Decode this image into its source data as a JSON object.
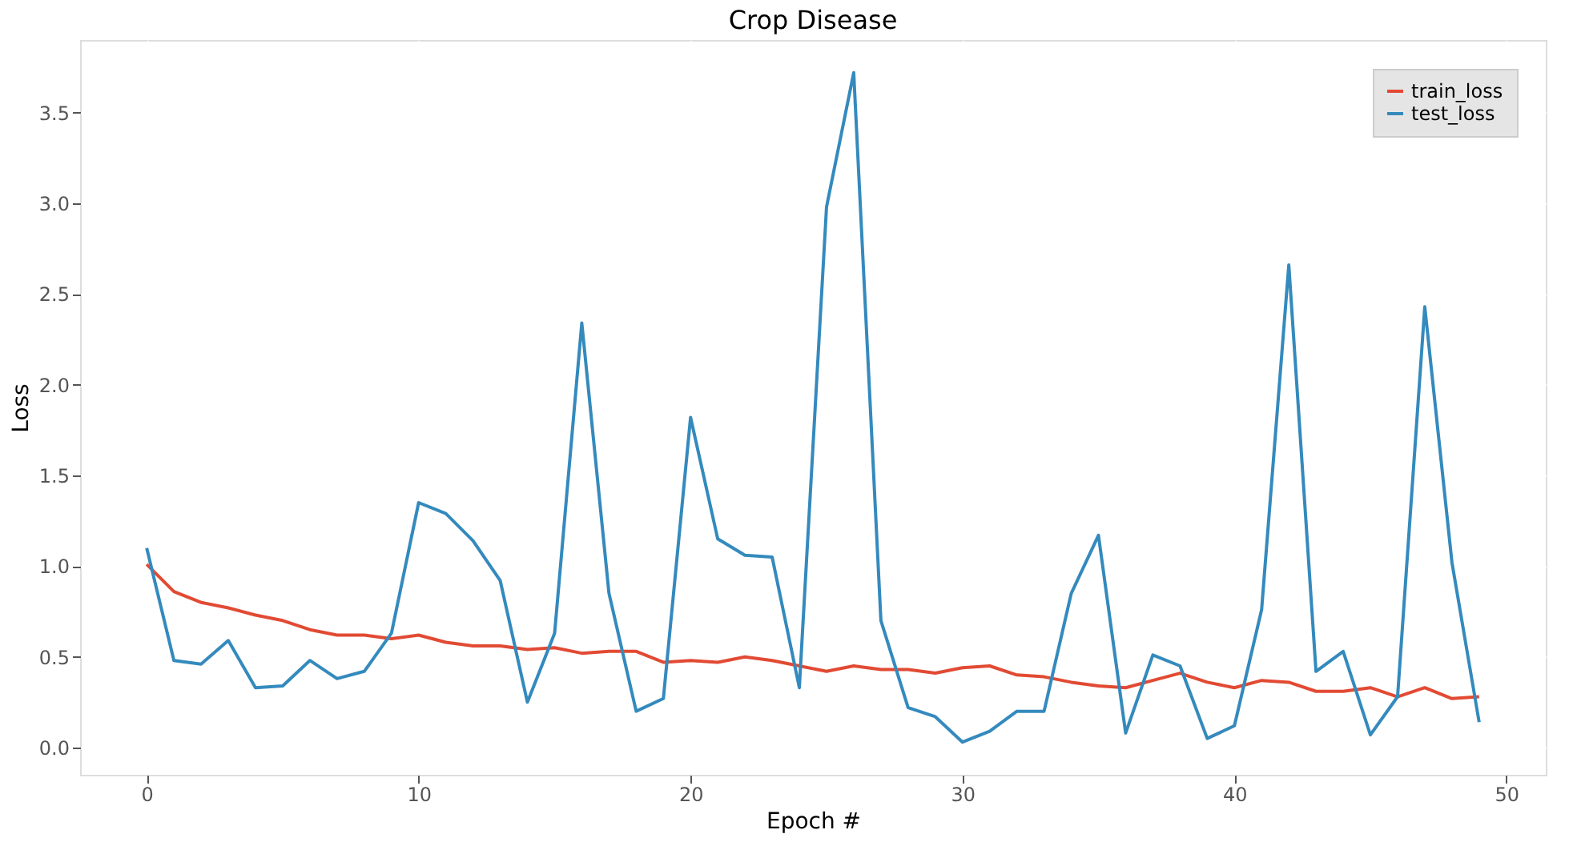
{
  "chart_data": {
    "type": "line",
    "title": "Crop Disease",
    "xlabel": "Epoch #",
    "ylabel": "Loss",
    "x": [
      0,
      1,
      2,
      3,
      4,
      5,
      6,
      7,
      8,
      9,
      10,
      11,
      12,
      13,
      14,
      15,
      16,
      17,
      18,
      19,
      20,
      21,
      22,
      23,
      24,
      25,
      26,
      27,
      28,
      29,
      30,
      31,
      32,
      33,
      34,
      35,
      36,
      37,
      38,
      39,
      40,
      41,
      42,
      43,
      44,
      45,
      46,
      47,
      48,
      49
    ],
    "series": [
      {
        "name": "train_loss",
        "color": "#e24a33",
        "values": [
          1.01,
          0.86,
          0.8,
          0.77,
          0.73,
          0.7,
          0.65,
          0.62,
          0.62,
          0.6,
          0.62,
          0.58,
          0.56,
          0.56,
          0.54,
          0.55,
          0.52,
          0.53,
          0.53,
          0.47,
          0.48,
          0.47,
          0.5,
          0.48,
          0.45,
          0.42,
          0.45,
          0.43,
          0.43,
          0.41,
          0.44,
          0.45,
          0.4,
          0.39,
          0.36,
          0.34,
          0.33,
          0.37,
          0.41,
          0.36,
          0.33,
          0.37,
          0.36,
          0.31,
          0.31,
          0.33,
          0.28,
          0.33,
          0.27,
          0.28
        ]
      },
      {
        "name": "test_loss",
        "color": "#348abd",
        "values": [
          1.1,
          0.48,
          0.46,
          0.59,
          0.33,
          0.34,
          0.48,
          0.38,
          0.42,
          0.63,
          1.35,
          1.29,
          1.14,
          0.92,
          0.25,
          0.63,
          2.34,
          0.85,
          0.2,
          0.27,
          1.82,
          1.15,
          1.06,
          1.05,
          0.33,
          2.98,
          3.72,
          0.7,
          0.22,
          0.17,
          0.03,
          0.09,
          0.2,
          0.2,
          0.85,
          1.17,
          0.08,
          0.51,
          0.45,
          0.05,
          0.12,
          0.76,
          2.66,
          0.42,
          0.53,
          0.07,
          0.28,
          2.43,
          1.02,
          0.14
        ]
      }
    ],
    "xlim": [
      -2.45,
      51.45
    ],
    "xticks": [
      0,
      10,
      20,
      30,
      40,
      50
    ],
    "ylim": [
      -0.15,
      3.9
    ],
    "yticks": [
      {
        "value": 0,
        "label": "0.0"
      },
      {
        "value": 0.5,
        "label": "0.5"
      },
      {
        "value": 1,
        "label": "1.0"
      },
      {
        "value": 1.5,
        "label": "1.5"
      },
      {
        "value": 2,
        "label": "2.0"
      },
      {
        "value": 2.5,
        "label": "2.5"
      },
      {
        "value": 3,
        "label": "3.0"
      },
      {
        "value": 3.5,
        "label": "3.5"
      }
    ],
    "grid": true,
    "legend": "top right",
    "marker": "none",
    "line_style": "solid"
  }
}
